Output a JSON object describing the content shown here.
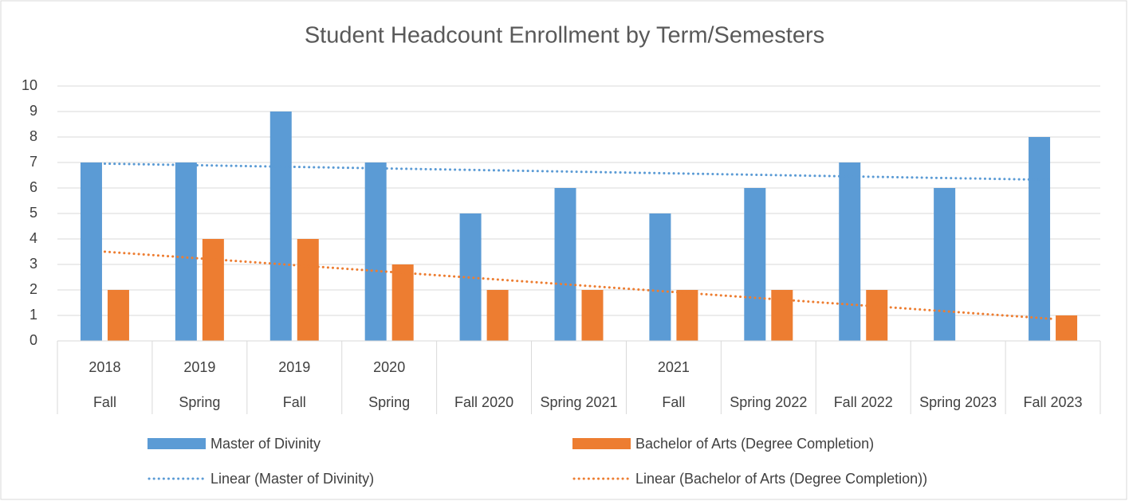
{
  "chart_data": {
    "type": "bar",
    "title": "Student Headcount Enrollment by Term/Semesters",
    "categories": [
      "Fall",
      "Spring",
      "Fall",
      "Spring",
      "Fall 2020",
      "Spring 2021",
      "Fall",
      "Spring 2022",
      "Fall 2022",
      "Spring 2023",
      "Fall 2023"
    ],
    "category_years": [
      "2018",
      "2019",
      "2019",
      "2020",
      null,
      null,
      "2021",
      null,
      null,
      null,
      null
    ],
    "series": [
      {
        "name": "Master of Divinity",
        "color": "#5b9bd5",
        "values": [
          7,
          7,
          9,
          7,
          5,
          6,
          5,
          6,
          7,
          6,
          8
        ]
      },
      {
        "name": "Bachelor of Arts (Degree Completion)",
        "color": "#ed7d31",
        "values": [
          2,
          4,
          4,
          3,
          2,
          2,
          2,
          2,
          2,
          0,
          1
        ]
      }
    ],
    "trendlines": [
      {
        "name": "Linear (Master of Divinity)",
        "series": 0,
        "type": "linear"
      },
      {
        "name": "Linear (Bachelor of Arts (Degree Completion))",
        "series": 1,
        "type": "linear"
      }
    ],
    "ylim": [
      0,
      10
    ],
    "yticks": [
      0,
      1,
      2,
      3,
      4,
      5,
      6,
      7,
      8,
      9,
      10
    ],
    "grid": true
  }
}
